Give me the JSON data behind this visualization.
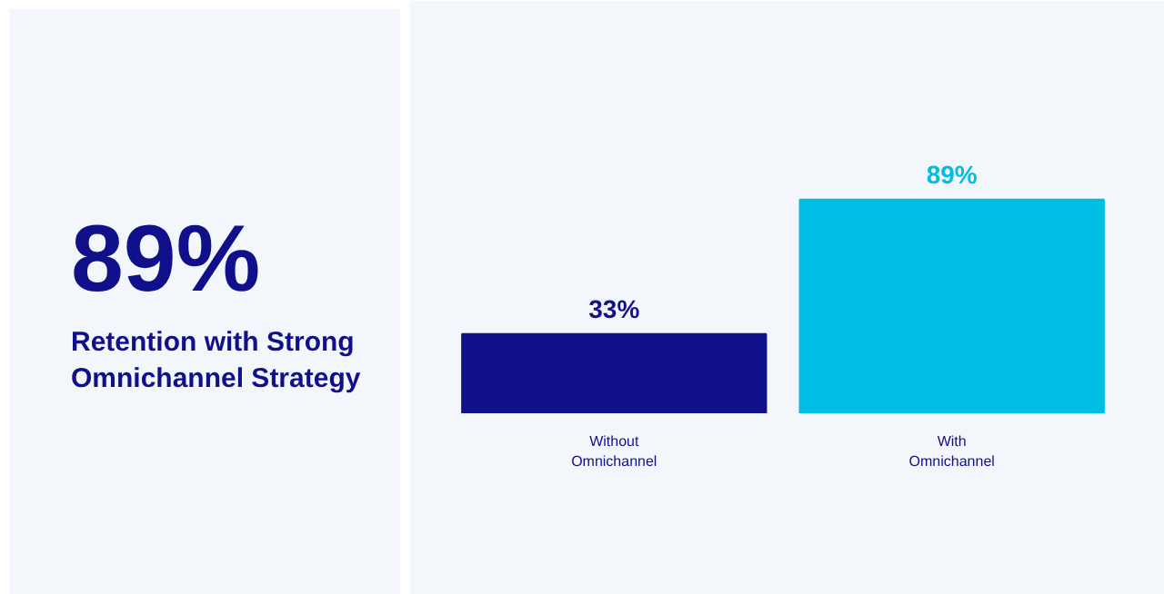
{
  "chart_data": {
    "type": "bar",
    "title": "89%",
    "subtitle": "Retention with Strong Omnichannel Strategy",
    "categories": [
      "Without Omnichannel",
      "With Omnichannel"
    ],
    "values": [
      33,
      89
    ],
    "colors": [
      "#10108a",
      "#00bde3"
    ],
    "value_labels": [
      "33%",
      "89%"
    ]
  }
}
